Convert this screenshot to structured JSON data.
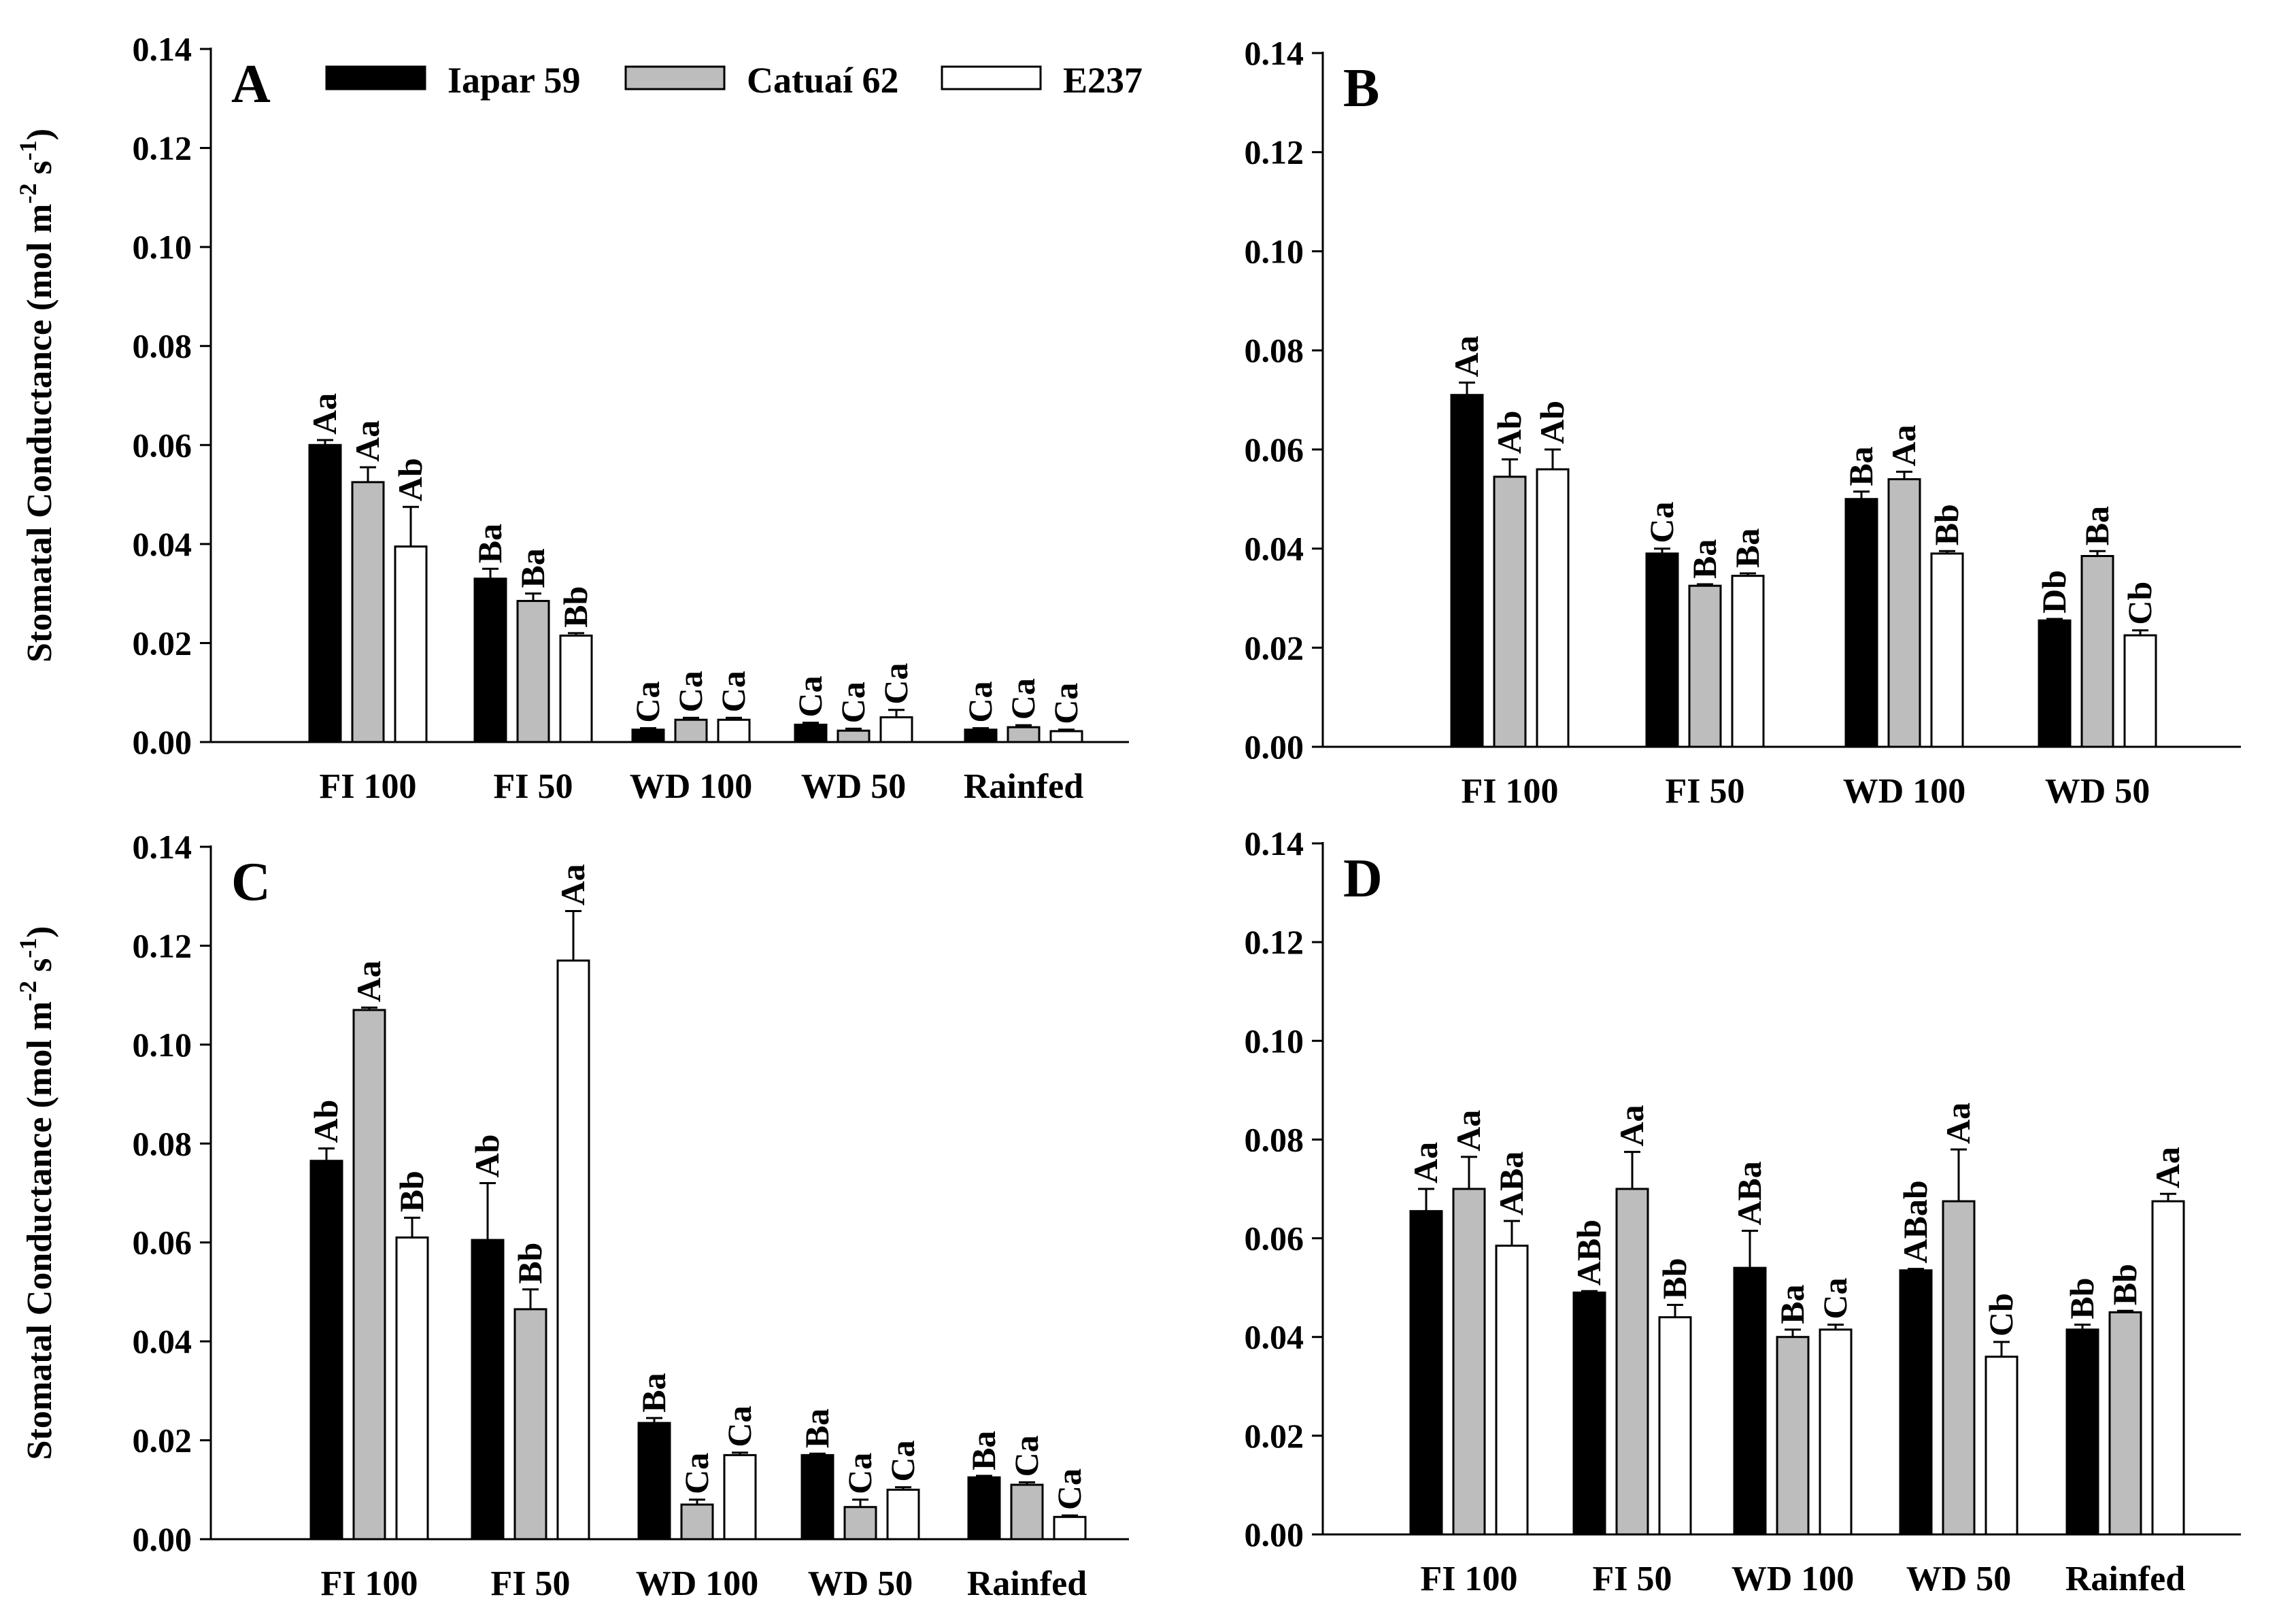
{
  "figure": {
    "y_axis_title": "Stomatal Conductance (mol m-2 s-1)",
    "y_axis_title_parts": {
      "base": "Stomatal Conductance (mol m",
      "exp1": "-2",
      "mid": " s",
      "exp2": "-1",
      "end": ")"
    },
    "legend": [
      {
        "name": "Iapar 59",
        "color": "#000000"
      },
      {
        "name": "Catuaí 62",
        "color": "#bdbdbd"
      },
      {
        "name": "E237",
        "color": "#ffffff"
      }
    ]
  },
  "chart_data": [
    {
      "panel": "A",
      "type": "bar",
      "ylim": [
        0,
        0.14
      ],
      "yticks": [
        "0.00",
        "0.02",
        "0.04",
        "0.06",
        "0.08",
        "0.10",
        "0.12",
        "0.14"
      ],
      "categories": [
        "FI 100",
        "FI 50",
        "WD 100",
        "WD 50",
        "Rainfed"
      ],
      "series": [
        {
          "name": "Iapar 59",
          "values": [
            0.06,
            0.033,
            0.0025,
            0.0035,
            0.0025
          ],
          "errors": [
            0.001,
            0.002,
            0.0003,
            0.0004,
            0.0003
          ],
          "labels": [
            "Aa",
            "Ba",
            "Ca",
            "Ca",
            "Ca"
          ]
        },
        {
          "name": "Catuaí 62",
          "values": [
            0.0525,
            0.0285,
            0.0045,
            0.0023,
            0.003
          ],
          "errors": [
            0.003,
            0.0015,
            0.0004,
            0.0004,
            0.0004
          ],
          "labels": [
            "Aa",
            "Ba",
            "Ca",
            "Ca",
            "Ca"
          ]
        },
        {
          "name": "E237",
          "values": [
            0.0395,
            0.0215,
            0.0045,
            0.005,
            0.0022
          ],
          "errors": [
            0.008,
            0.0005,
            0.0004,
            0.0015,
            0.0003
          ],
          "labels": [
            "Ab",
            "Bb",
            "Ca",
            "Ca",
            "Ca"
          ]
        }
      ]
    },
    {
      "panel": "B",
      "type": "bar",
      "ylim": [
        0,
        0.14
      ],
      "yticks": [
        "0.00",
        "0.02",
        "0.04",
        "0.06",
        "0.08",
        "0.10",
        "0.12",
        "0.14"
      ],
      "categories": [
        "FI 100",
        "FI 50",
        "WD 100",
        "WD 50"
      ],
      "series": [
        {
          "name": "Iapar 59",
          "values": [
            0.071,
            0.039,
            0.05,
            0.0255
          ],
          "errors": [
            0.0025,
            0.001,
            0.0015,
            0.0003
          ],
          "labels": [
            "Aa",
            "Ca",
            "Ba",
            "Db"
          ]
        },
        {
          "name": "Catuaí 62",
          "values": [
            0.0545,
            0.0325,
            0.054,
            0.0385
          ],
          "errors": [
            0.0035,
            0.0003,
            0.0015,
            0.001
          ],
          "labels": [
            "Ab",
            "Ba",
            "Aa",
            "Ba"
          ]
        },
        {
          "name": "E237",
          "values": [
            0.056,
            0.0345,
            0.039,
            0.0225
          ],
          "errors": [
            0.004,
            0.0005,
            0.0005,
            0.001
          ],
          "labels": [
            "Ab",
            "Ba",
            "Bb",
            "Cb"
          ]
        }
      ]
    },
    {
      "panel": "C",
      "type": "bar",
      "ylim": [
        0,
        0.14
      ],
      "yticks": [
        "0.00",
        "0.02",
        "0.04",
        "0.06",
        "0.08",
        "0.10",
        "0.12",
        "0.14"
      ],
      "categories": [
        "FI 100",
        "FI 50",
        "WD 100",
        "WD 50",
        "Rainfed"
      ],
      "series": [
        {
          "name": "Iapar 59",
          "values": [
            0.0765,
            0.0605,
            0.0235,
            0.017,
            0.0125
          ],
          "errors": [
            0.0025,
            0.0115,
            0.001,
            0.0003,
            0.0003
          ],
          "labels": [
            "Ab",
            "Ab",
            "Ba",
            "Ba",
            "Ba"
          ]
        },
        {
          "name": "Catuaí 62",
          "values": [
            0.107,
            0.0465,
            0.007,
            0.0065,
            0.011
          ],
          "errors": [
            0.0005,
            0.004,
            0.001,
            0.0015,
            0.0005
          ],
          "labels": [
            "Aa",
            "Bb",
            "Ca",
            "Ca",
            "Ca"
          ]
        },
        {
          "name": "E237",
          "values": [
            0.061,
            0.117,
            0.017,
            0.01,
            0.0045
          ],
          "errors": [
            0.004,
            0.01,
            0.0005,
            0.0005,
            0.0003
          ],
          "labels": [
            "Bb",
            "Aa",
            "Ca",
            "Ca",
            "Ca"
          ]
        }
      ]
    },
    {
      "panel": "D",
      "type": "bar",
      "ylim": [
        0,
        0.14
      ],
      "yticks": [
        "0.00",
        "0.02",
        "0.04",
        "0.06",
        "0.08",
        "0.10",
        "0.12",
        "0.14"
      ],
      "categories": [
        "FI 100",
        "FI 50",
        "WD 100",
        "WD 50",
        "Rainfed"
      ],
      "series": [
        {
          "name": "Iapar 59",
          "values": [
            0.0655,
            0.049,
            0.054,
            0.0535,
            0.0415
          ],
          "errors": [
            0.0045,
            0.0003,
            0.0075,
            0.0003,
            0.001
          ],
          "labels": [
            "Aa",
            "ABb",
            "ABa",
            "ABab",
            "Bb"
          ]
        },
        {
          "name": "Catuaí 62",
          "values": [
            0.07,
            0.07,
            0.04,
            0.0675,
            0.045
          ],
          "errors": [
            0.0065,
            0.0075,
            0.0015,
            0.0105,
            0.0003
          ],
          "labels": [
            "Aa",
            "Aa",
            "Ba",
            "Aa",
            "Bb"
          ]
        },
        {
          "name": "E237",
          "values": [
            0.0585,
            0.044,
            0.0415,
            0.036,
            0.0675
          ],
          "errors": [
            0.005,
            0.0025,
            0.001,
            0.003,
            0.0015
          ],
          "labels": [
            "ABa",
            "Bb",
            "Ca",
            "Cb",
            "Aa"
          ]
        }
      ]
    }
  ]
}
